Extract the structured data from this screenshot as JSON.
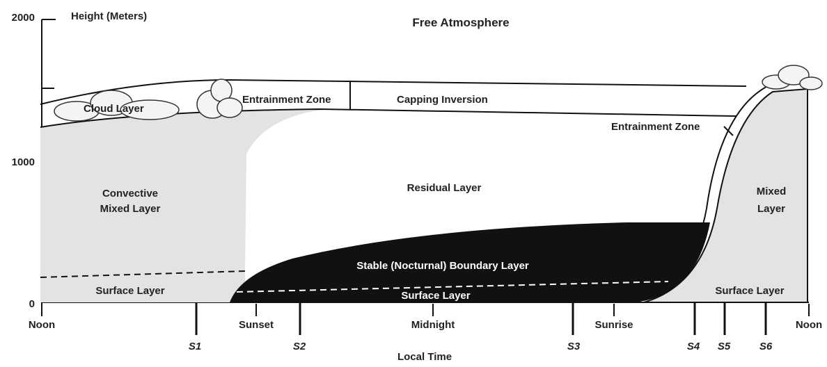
{
  "axis": {
    "title": "Height (Meters)",
    "ticks": [
      "2000",
      "1000",
      "0"
    ],
    "x_title": "Local Time"
  },
  "regions": {
    "free_atmosphere": "Free Atmosphere",
    "cloud_layer": "Cloud Layer",
    "entrainment_zone_left": "Entrainment Zone",
    "capping_inversion": "Capping Inversion",
    "entrainment_zone_right": "Entrainment Zone",
    "convective_mixed_layer": [
      "Convective",
      "Mixed Layer"
    ],
    "residual_layer": "Residual Layer",
    "mixed_layer": [
      "Mixed",
      "Layer"
    ],
    "stable_layer": "Stable (Nocturnal) Boundary Layer",
    "surface_layer_left": "Surface Layer",
    "surface_layer_middle": "Surface Layer",
    "surface_layer_right": "Surface Layer"
  },
  "times": [
    "Noon",
    "Sunset",
    "Midnight",
    "Sunrise",
    "Noon"
  ],
  "stations": [
    "S1",
    "S2",
    "S3",
    "S4",
    "S5",
    "S6"
  ]
}
